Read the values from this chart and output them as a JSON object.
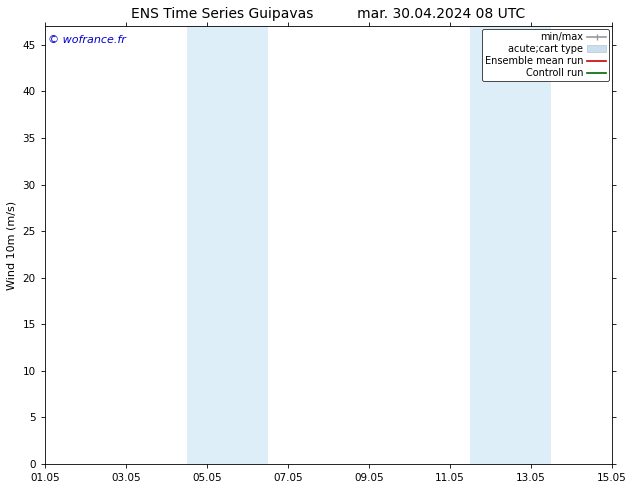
{
  "title_left": "ENS Time Series Guipavas",
  "title_right": "mar. 30.04.2024 08 UTC",
  "ylabel": "Wind 10m (m/s)",
  "watermark": "© wofrance.fr",
  "ylim": [
    0,
    47
  ],
  "yticks": [
    0,
    5,
    10,
    15,
    20,
    25,
    30,
    35,
    40,
    45
  ],
  "xtick_labels": [
    "01.05",
    "03.05",
    "05.05",
    "07.05",
    "09.05",
    "11.05",
    "13.05",
    "15.05"
  ],
  "xtick_positions": [
    0,
    2,
    4,
    6,
    8,
    10,
    12,
    14
  ],
  "shaded_regions": [
    {
      "xmin": 3.5,
      "xmax": 4.5
    },
    {
      "xmin": 4.5,
      "xmax": 5.5
    },
    {
      "xmin": 10.5,
      "xmax": 11.5
    },
    {
      "xmin": 11.5,
      "xmax": 12.5
    }
  ],
  "shaded_color": "#ddeef8",
  "background_color": "#ffffff",
  "legend_entries": [
    {
      "label": "min/max",
      "color": "#999999",
      "lw": 1.2,
      "type": "errorbar"
    },
    {
      "label": "acute;cart type",
      "color": "#ccddee",
      "type": "fill"
    },
    {
      "label": "Ensemble mean run",
      "color": "#cc0000",
      "lw": 1.2,
      "type": "line"
    },
    {
      "label": "Controll run",
      "color": "#006600",
      "lw": 1.2,
      "type": "line"
    }
  ],
  "border_color": "#000000",
  "title_fontsize": 10,
  "axis_label_fontsize": 8,
  "tick_fontsize": 7.5,
  "legend_fontsize": 7,
  "watermark_color": "#0000cc",
  "watermark_fontsize": 8
}
